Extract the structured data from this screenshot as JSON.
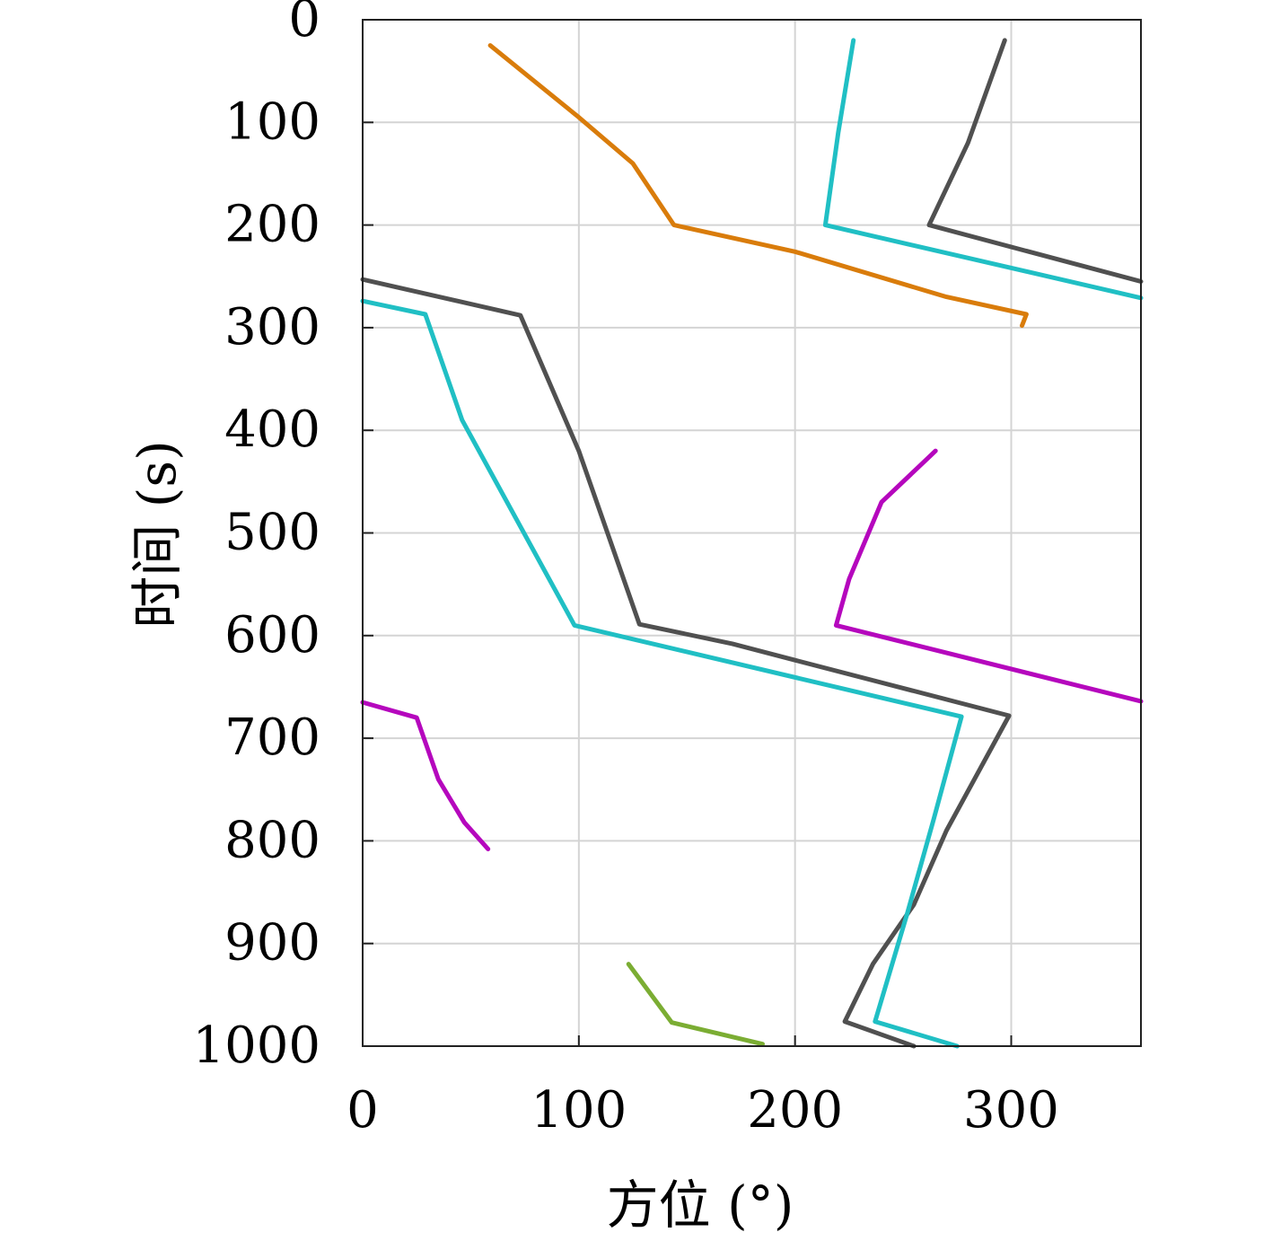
{
  "chart_data": {
    "type": "line",
    "title": "",
    "xlabel": "方位 (°)",
    "ylabel": "时间 (s)",
    "xlim": [
      0,
      360
    ],
    "ylim": [
      0,
      1000
    ],
    "y_inverted": true,
    "grid": true,
    "legend": "none",
    "xticks": [
      0,
      100,
      200,
      300
    ],
    "yticks": [
      0,
      100,
      200,
      300,
      400,
      500,
      600,
      700,
      800,
      900,
      1000
    ],
    "series": [
      {
        "color": "#D97C0B",
        "points": [
          [
            59,
            25
          ],
          [
            100,
            95
          ],
          [
            125,
            140
          ],
          [
            144,
            200
          ],
          [
            200,
            226
          ],
          [
            270,
            270
          ],
          [
            307,
            287
          ],
          [
            305,
            298
          ]
        ]
      },
      {
        "color": "#20BFC4",
        "points": [
          [
            227,
            20
          ],
          [
            220,
            110
          ],
          [
            214,
            200
          ],
          [
            360,
            271
          ]
        ]
      },
      {
        "color": "#505050",
        "points": [
          [
            297,
            20
          ],
          [
            280,
            120
          ],
          [
            262,
            200
          ],
          [
            360,
            255
          ]
        ]
      },
      {
        "color": "#505050",
        "points": [
          [
            0,
            253
          ],
          [
            73,
            288
          ],
          [
            100,
            420
          ],
          [
            128,
            589
          ],
          [
            171,
            608
          ],
          [
            200,
            624
          ],
          [
            299,
            678
          ],
          [
            270,
            790
          ],
          [
            255,
            862
          ],
          [
            236,
            920
          ],
          [
            223,
            976
          ],
          [
            255,
            1000
          ]
        ]
      },
      {
        "color": "#20BFC4",
        "points": [
          [
            0,
            274
          ],
          [
            29,
            287
          ],
          [
            46,
            390
          ],
          [
            98,
            590
          ],
          [
            277,
            679
          ],
          [
            264,
            780
          ],
          [
            252,
            870
          ],
          [
            237,
            976
          ],
          [
            275,
            1000
          ]
        ]
      },
      {
        "color": "#B507BD",
        "points": [
          [
            265,
            420
          ],
          [
            240,
            470
          ],
          [
            225,
            545
          ],
          [
            219,
            590
          ],
          [
            360,
            664
          ]
        ]
      },
      {
        "color": "#B507BD",
        "points": [
          [
            0,
            665
          ],
          [
            25,
            680
          ],
          [
            35,
            740
          ],
          [
            47,
            782
          ],
          [
            58,
            808
          ]
        ]
      },
      {
        "color": "#7BAD33",
        "points": [
          [
            123,
            920
          ],
          [
            143,
            977
          ],
          [
            185,
            998
          ]
        ]
      }
    ]
  }
}
